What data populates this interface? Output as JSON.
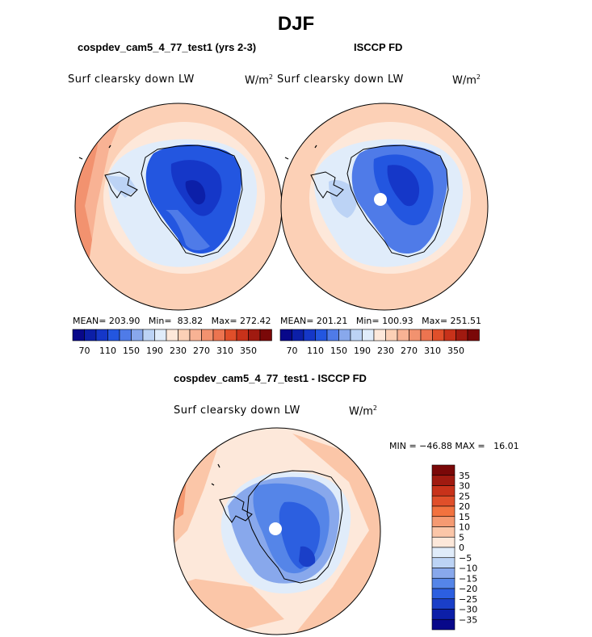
{
  "page": {
    "title": "DJF"
  },
  "panels": [
    {
      "title": "cospdev_cam5_4_77_test1 (yrs 2-3)",
      "variable": "Surf clearsky down LW",
      "units_base": "W/m",
      "units_exp": "2",
      "stats": "MEAN= 203.90   Min=  83.82   Max= 272.42",
      "colorbar_labels": [
        "70",
        "110",
        "150",
        "190",
        "230",
        "270",
        "310",
        "350"
      ]
    },
    {
      "title": "ISCCP FD",
      "variable": "Surf clearsky down LW",
      "units_base": "W/m",
      "units_exp": "2",
      "stats": "MEAN= 201.21   Min= 100.93   Max= 251.51",
      "colorbar_labels": [
        "70",
        "110",
        "150",
        "190",
        "230",
        "270",
        "310",
        "350"
      ]
    }
  ],
  "diff_panel": {
    "title": "cospdev_cam5_4_77_test1 - ISCCP FD",
    "variable": "Surf clearsky down LW",
    "units_base": "W/m",
    "units_exp": "2",
    "minmax": "MIN = −46.88 MAX =   16.01",
    "colorbar_labels": [
      "35",
      "30",
      "25",
      "20",
      "15",
      "10",
      "5",
      "0",
      "−5",
      "−10",
      "−15",
      "−20",
      "−25",
      "−30",
      "−35"
    ]
  },
  "chart_data": [
    {
      "type": "heatmap",
      "projection": "south polar stereographic",
      "title": "cospdev_cam5_4_77_test1 (yrs 2-3)",
      "variable": "Surf clearsky down LW",
      "units": "W/m2",
      "mean": 203.9,
      "min": 83.82,
      "max": 272.42,
      "contour_levels": [
        70,
        80,
        90,
        100,
        110,
        120,
        130,
        140,
        150,
        160,
        170,
        180,
        190,
        200,
        210,
        220,
        230,
        240,
        250,
        260,
        270,
        280,
        290,
        300,
        310,
        320,
        330,
        340,
        350
      ],
      "colors": [
        "#08088a",
        "#0c1fa8",
        "#1537c8",
        "#2356e0",
        "#4f7be8",
        "#88a8ec",
        "#bcd3f5",
        "#e0ecfa",
        "#fde8da",
        "#fcd0b6",
        "#f8b294",
        "#f2926f",
        "#ec7450",
        "#e04f2a",
        "#c8321a",
        "#a01a10",
        "#7a0808"
      ]
    },
    {
      "type": "heatmap",
      "projection": "south polar stereographic",
      "title": "ISCCP FD",
      "variable": "Surf clearsky down LW",
      "units": "W/m2",
      "mean": 201.21,
      "min": 100.93,
      "max": 251.51,
      "contour_levels": [
        70,
        80,
        90,
        100,
        110,
        120,
        130,
        140,
        150,
        160,
        170,
        180,
        190,
        200,
        210,
        220,
        230,
        240,
        250,
        260,
        270,
        280,
        290,
        300,
        310,
        320,
        330,
        340,
        350
      ],
      "colors": [
        "#08088a",
        "#0c1fa8",
        "#1537c8",
        "#2356e0",
        "#4f7be8",
        "#88a8ec",
        "#bcd3f5",
        "#e0ecfa",
        "#fde8da",
        "#fcd0b6",
        "#f8b294",
        "#f2926f",
        "#ec7450",
        "#e04f2a",
        "#c8321a",
        "#a01a10",
        "#7a0808"
      ]
    },
    {
      "type": "heatmap",
      "projection": "south polar stereographic",
      "title": "cospdev_cam5_4_77_test1 - ISCCP FD",
      "variable": "Surf clearsky down LW",
      "units": "W/m2",
      "min": -46.88,
      "max": 16.01,
      "contour_levels": [
        -35,
        -30,
        -25,
        -20,
        -15,
        -10,
        -5,
        0,
        5,
        10,
        15,
        20,
        25,
        30,
        35
      ],
      "colors": [
        "#7a0808",
        "#a01a10",
        "#c8321a",
        "#e04f2a",
        "#f2723f",
        "#f59a72",
        "#fbc6a8",
        "#fde8da",
        "#e0ecfa",
        "#bcd3f5",
        "#88a8ec",
        "#5585e8",
        "#2c5fe0",
        "#1a3fc8",
        "#0c1fa8",
        "#08088a"
      ]
    }
  ]
}
